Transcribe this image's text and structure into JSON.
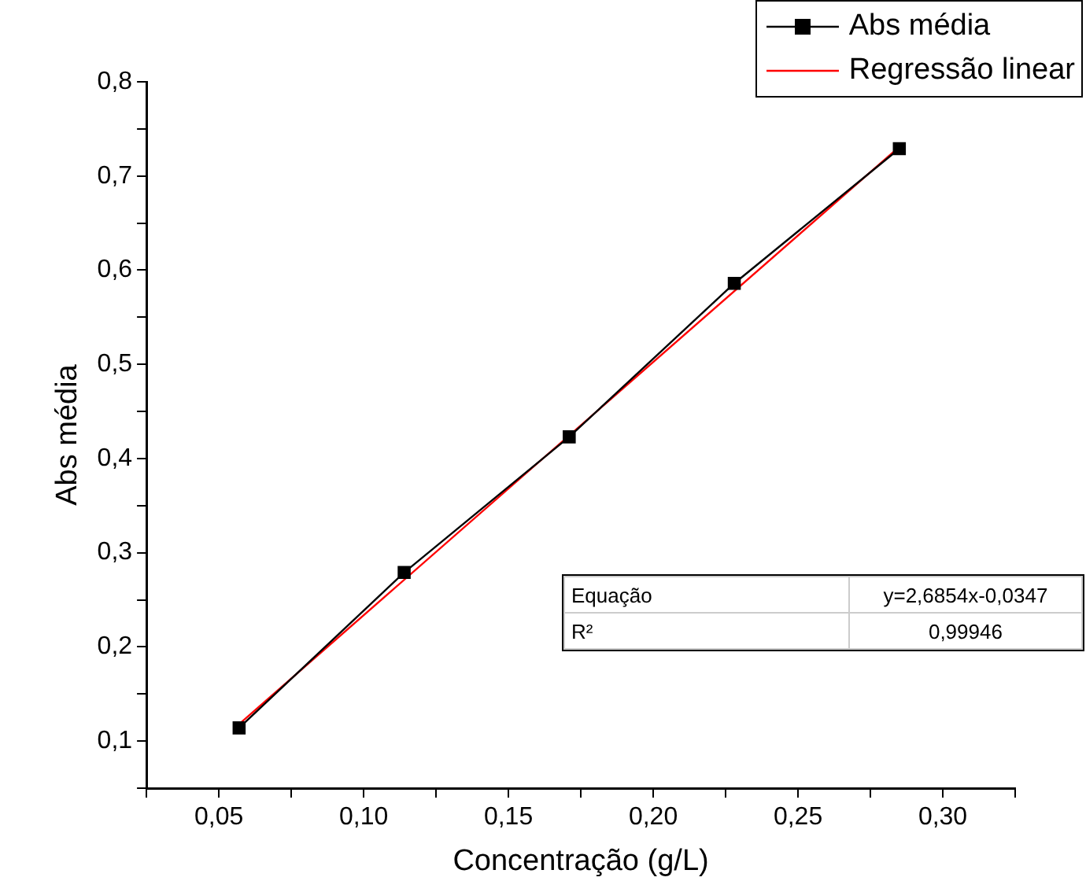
{
  "chart_data": {
    "type": "line",
    "xlabel": "Concentração (g/L)",
    "ylabel": "Abs média",
    "x": [
      0.057,
      0.114,
      0.171,
      0.228,
      0.285
    ],
    "series": [
      {
        "name": "Abs média",
        "color": "#000000",
        "values": [
          0.114,
          0.279,
          0.423,
          0.586,
          0.729
        ],
        "marker": "square"
      },
      {
        "name": "Regressão linear",
        "color": "#ff0000",
        "x": [
          0.057,
          0.285
        ],
        "values": [
          0.118,
          0.731
        ],
        "marker": "none"
      }
    ],
    "xlim": [
      0.025,
      0.325
    ],
    "xticks": [
      {
        "value": 0.025,
        "label": null
      },
      {
        "value": 0.05,
        "label": "0,05"
      },
      {
        "value": 0.075,
        "label": null
      },
      {
        "value": 0.1,
        "label": "0,10"
      },
      {
        "value": 0.125,
        "label": null
      },
      {
        "value": 0.15,
        "label": "0,15"
      },
      {
        "value": 0.175,
        "label": null
      },
      {
        "value": 0.2,
        "label": "0,20"
      },
      {
        "value": 0.225,
        "label": null
      },
      {
        "value": 0.25,
        "label": "0,25"
      },
      {
        "value": 0.275,
        "label": null
      },
      {
        "value": 0.3,
        "label": "0,30"
      },
      {
        "value": 0.325,
        "label": null
      }
    ],
    "ylim": [
      0.05,
      0.8
    ],
    "yticks": [
      {
        "value": 0.05,
        "label": null
      },
      {
        "value": 0.1,
        "label": "0,1"
      },
      {
        "value": 0.15,
        "label": null
      },
      {
        "value": 0.2,
        "label": "0,2"
      },
      {
        "value": 0.25,
        "label": null
      },
      {
        "value": 0.3,
        "label": "0,3"
      },
      {
        "value": 0.35,
        "label": null
      },
      {
        "value": 0.4,
        "label": "0,4"
      },
      {
        "value": 0.45,
        "label": null
      },
      {
        "value": 0.5,
        "label": "0,5"
      },
      {
        "value": 0.55,
        "label": null
      },
      {
        "value": 0.6,
        "label": "0,6"
      },
      {
        "value": 0.65,
        "label": null
      },
      {
        "value": 0.7,
        "label": "0,7"
      },
      {
        "value": 0.75,
        "label": null
      },
      {
        "value": 0.8,
        "label": "0,8"
      }
    ],
    "annotations": [
      "Equação",
      "y=2,6854x-0,0347",
      "R²",
      "0,99946"
    ],
    "grid": false,
    "legend": "top right",
    "line_style": "solid"
  }
}
